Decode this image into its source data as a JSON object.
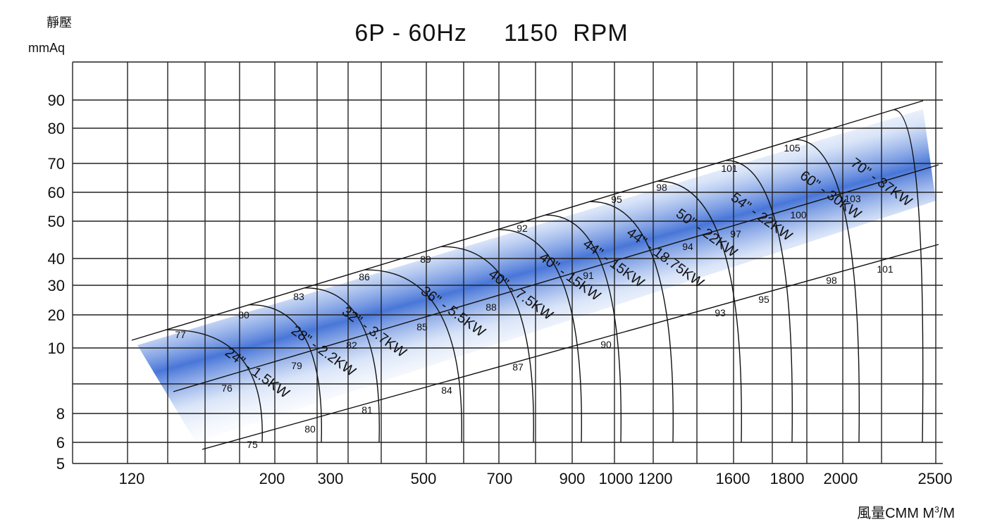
{
  "chart_data": {
    "type": "line",
    "title": "6P - 60Hz     1150  RPM",
    "ylabel_line1": "靜壓",
    "ylabel_line2": "mmAq",
    "xlabel": "風量CMM M",
    "xlabel_sup": "3",
    "xlabel_tail": "/M",
    "y_ticks": [
      "90",
      "80",
      "70",
      "60",
      "50",
      "40",
      "30",
      "20",
      "10",
      "8",
      "6",
      "5"
    ],
    "x_ticks": [
      "120",
      "200",
      "300",
      "500",
      "700",
      "900",
      "1000",
      "1200",
      "1600",
      "1800",
      "2000",
      "2500"
    ],
    "grid": true,
    "fans": [
      {
        "size": "24\"",
        "power": "1.5KW",
        "max_flow": 190
      },
      {
        "size": "28\"",
        "power": "2.2KW",
        "max_flow": 285
      },
      {
        "size": "32\"",
        "power": "3.7KW",
        "max_flow": 380
      },
      {
        "size": "36\"",
        "power": "5.5KW",
        "max_flow": 560
      },
      {
        "size": "40\"",
        "power": "7.5KW",
        "max_flow": 780
      },
      {
        "size": "40\"",
        "power": "15KW",
        "max_flow": 920
      },
      {
        "size": "44\"",
        "power": "15KW",
        "max_flow": 1030
      },
      {
        "size": "44\"",
        "power": "18.75KW",
        "max_flow": 1250
      },
      {
        "size": "50\"",
        "power": "22KW",
        "max_flow": 1640
      },
      {
        "size": "54\"",
        "power": "22KW",
        "max_flow": 1810
      },
      {
        "size": "60\"",
        "power": "30KW",
        "max_flow": 2060
      },
      {
        "size": "70\"",
        "power": "37KW",
        "max_flow": 2420
      }
    ],
    "efficiency_labels": [
      "77",
      "80",
      "83",
      "86",
      "89",
      "92",
      "95",
      "98",
      "101",
      "105",
      "76",
      "79",
      "82",
      "85",
      "88",
      "91",
      "94",
      "97",
      "100",
      "103",
      "75",
      "80",
      "81",
      "84",
      "87",
      "90",
      "93",
      "95",
      "98",
      "101"
    ]
  }
}
